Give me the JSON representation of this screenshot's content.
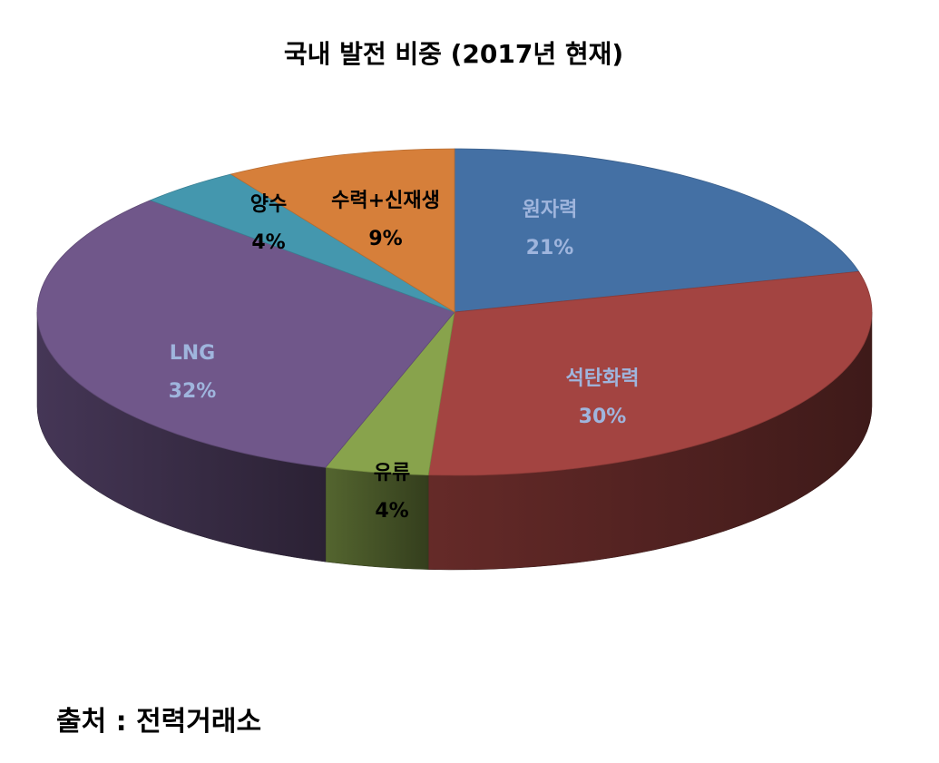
{
  "chart_data": {
    "type": "pie",
    "title": "국내 발전 비중 (2017년 현재)",
    "source": "출처 : 전력거래소",
    "slices": [
      {
        "name": "원자력",
        "value": 21,
        "label": "21%",
        "color": "#4470A4",
        "label_color": "#9FB5DD"
      },
      {
        "name": "석탄화력",
        "value": 30,
        "label": "30%",
        "color": "#A34441",
        "label_color": "#9FB5DD"
      },
      {
        "name": "유류",
        "value": 4,
        "label": "4%",
        "color": "#88A34C",
        "label_color": "#000000"
      },
      {
        "name": "LNG",
        "value": 32,
        "label": "32%",
        "color": "#70578A",
        "label_color": "#9FB5DD"
      },
      {
        "name": "양수",
        "value": 4,
        "label": "4%",
        "color": "#4497AE",
        "label_color": "#000000"
      },
      {
        "name": "수력+신재생",
        "value": 9,
        "label": "9%",
        "color": "#D67F3A",
        "label_color": "#000000"
      }
    ],
    "style": "3d-pie"
  }
}
